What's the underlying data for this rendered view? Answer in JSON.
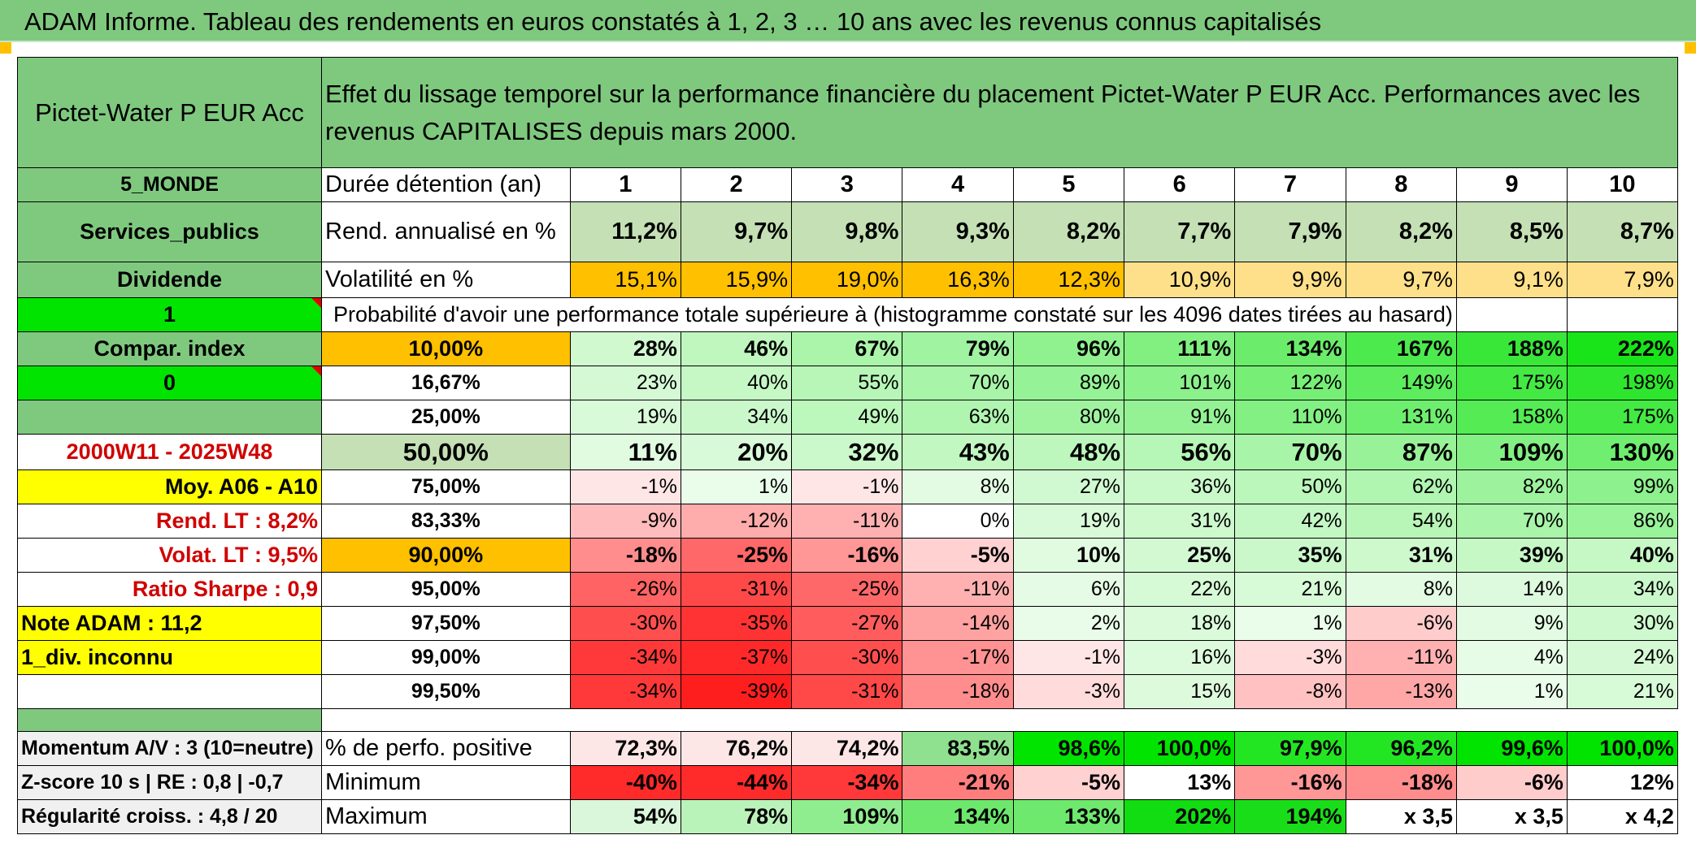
{
  "title": "ADAM Informe. Tableau des rendements en euros constatés à 1, 2, 3 … 10 ans avec les revenus connus capitalisés",
  "colors": {
    "green_header": "#7fc97f",
    "bright_green": "#00e400",
    "yellow": "#ffff00",
    "orange": "#ffc000",
    "red_text": "#d00000"
  },
  "left": {
    "fund_name": "Pictet-Water P EUR Acc",
    "region": "5_MONDE",
    "sector": "Services_publics",
    "distribution": "Dividende",
    "flag_one": "1",
    "compar_index": "Compar. index",
    "flag_zero": "0",
    "period": "2000W11 - 2025W48",
    "moy": "Moy. A06 - A10",
    "rend_lt": "Rend. LT :   8,2%",
    "volat_lt": "Volat. LT :   9,5%",
    "sharpe": "Ratio Sharpe :   0,9",
    "note_adam": "Note ADAM : 11,2",
    "div": "1_div. inconnu",
    "momentum": "Momentum A/V : 3 (10=neutre)",
    "zscore": "Z-score 10 s | RE : 0,8 | -0,7",
    "regularite": "Régularité croiss. : 4,8 / 20"
  },
  "description": "Effet du lissage temporel sur la performance financière du placement Pictet-Water P EUR Acc. Performances avec les revenus CAPITALISES depuis mars 2000.",
  "duree_label": "Durée détention (an)",
  "years": [
    "1",
    "2",
    "3",
    "4",
    "5",
    "6",
    "7",
    "8",
    "9",
    "10"
  ],
  "rend_label": "Rend. annualisé en %",
  "rend_values": [
    "11,2%",
    "9,7%",
    "9,8%",
    "9,3%",
    "8,2%",
    "7,7%",
    "7,9%",
    "8,2%",
    "8,5%",
    "8,7%"
  ],
  "vol_label": "Volatilité en %",
  "vol_values": [
    "15,1%",
    "15,9%",
    "19,0%",
    "16,3%",
    "12,3%",
    "10,9%",
    "9,9%",
    "9,7%",
    "9,1%",
    "7,9%"
  ],
  "prob_title": "Probabilité d'avoir une performance totale supérieure à (histogramme constaté sur les 4096 dates tirées au hasard)",
  "prob_rows": [
    {
      "label": "10,00%",
      "values": [
        "28%",
        "46%",
        "67%",
        "79%",
        "96%",
        "111%",
        "134%",
        "167%",
        "188%",
        "222%"
      ]
    },
    {
      "label": "16,67%",
      "values": [
        "23%",
        "40%",
        "55%",
        "70%",
        "89%",
        "101%",
        "122%",
        "149%",
        "175%",
        "198%"
      ]
    },
    {
      "label": "25,00%",
      "values": [
        "19%",
        "34%",
        "49%",
        "63%",
        "80%",
        "91%",
        "110%",
        "131%",
        "158%",
        "175%"
      ]
    },
    {
      "label": "50,00%",
      "values": [
        "11%",
        "20%",
        "32%",
        "43%",
        "48%",
        "56%",
        "70%",
        "87%",
        "109%",
        "130%"
      ]
    },
    {
      "label": "75,00%",
      "values": [
        "-1%",
        "1%",
        "-1%",
        "8%",
        "27%",
        "36%",
        "50%",
        "62%",
        "82%",
        "99%"
      ]
    },
    {
      "label": "83,33%",
      "values": [
        "-9%",
        "-12%",
        "-11%",
        "0%",
        "19%",
        "31%",
        "42%",
        "54%",
        "70%",
        "86%"
      ]
    },
    {
      "label": "90,00%",
      "values": [
        "-18%",
        "-25%",
        "-16%",
        "-5%",
        "10%",
        "25%",
        "35%",
        "31%",
        "39%",
        "40%"
      ]
    },
    {
      "label": "95,00%",
      "values": [
        "-26%",
        "-31%",
        "-25%",
        "-11%",
        "6%",
        "22%",
        "21%",
        "8%",
        "14%",
        "34%"
      ]
    },
    {
      "label": "97,50%",
      "values": [
        "-30%",
        "-35%",
        "-27%",
        "-14%",
        "2%",
        "18%",
        "1%",
        "-6%",
        "9%",
        "30%"
      ]
    },
    {
      "label": "99,00%",
      "values": [
        "-34%",
        "-37%",
        "-30%",
        "-17%",
        "-1%",
        "16%",
        "-3%",
        "-11%",
        "4%",
        "24%"
      ]
    },
    {
      "label": "99,50%",
      "values": [
        "-34%",
        "-39%",
        "-31%",
        "-18%",
        "-3%",
        "15%",
        "-8%",
        "-13%",
        "1%",
        "21%"
      ]
    }
  ],
  "pos_label": "% de perfo. positive",
  "pos_values": [
    "72,3%",
    "76,2%",
    "74,2%",
    "83,5%",
    "98,6%",
    "100,0%",
    "97,9%",
    "96,2%",
    "99,6%",
    "100,0%"
  ],
  "min_label": "Minimum",
  "min_values": [
    "-40%",
    "-44%",
    "-34%",
    "-21%",
    "-5%",
    "13%",
    "-16%",
    "-18%",
    "-6%",
    "12%"
  ],
  "max_label": "Maximum",
  "max_values": [
    "54%",
    "78%",
    "109%",
    "134%",
    "133%",
    "202%",
    "194%",
    "x 3,5",
    "x 3,5",
    "x 4,2"
  ]
}
